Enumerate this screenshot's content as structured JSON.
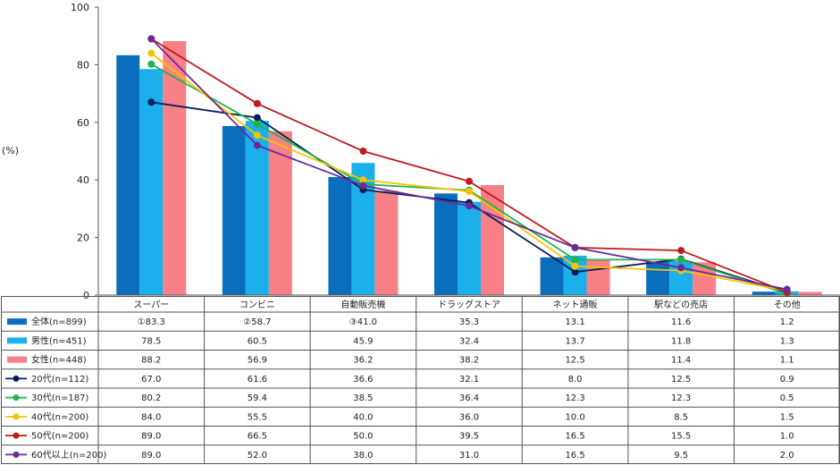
{
  "chart_data": {
    "type": "bar",
    "unit_label": "(%)",
    "ylim": [
      0,
      100
    ],
    "yticks": [
      0,
      20,
      40,
      60,
      80,
      100
    ],
    "categories": [
      "スーパー",
      "コンビニ",
      "自動販売機",
      "ドラッグストア",
      "ネット通販",
      "駅などの売店",
      "その他"
    ],
    "series": [
      {
        "name": "全体(n=899)",
        "kind": "bar",
        "color": "#0A6EBD",
        "values": [
          83.3,
          58.7,
          41.0,
          35.3,
          13.1,
          11.6,
          1.2
        ],
        "labels": [
          "①83.3",
          "②58.7",
          "③41.0",
          "35.3",
          "13.1",
          "11.6",
          "1.2"
        ]
      },
      {
        "name": "男性(n=451)",
        "kind": "bar",
        "color": "#1BB0EB",
        "values": [
          78.5,
          60.5,
          45.9,
          32.4,
          13.7,
          11.8,
          1.3
        ],
        "labels": [
          "78.5",
          "60.5",
          "45.9",
          "32.4",
          "13.7",
          "11.8",
          "1.3"
        ]
      },
      {
        "name": "女性(n=448)",
        "kind": "bar",
        "color": "#F88087",
        "values": [
          88.2,
          56.9,
          36.2,
          38.2,
          12.5,
          11.4,
          1.1
        ],
        "labels": [
          "88.2",
          "56.9",
          "36.2",
          "38.2",
          "12.5",
          "11.4",
          "1.1"
        ]
      },
      {
        "name": "20代(n=112)",
        "kind": "line",
        "color": "#0B1E5C",
        "values": [
          67.0,
          61.6,
          36.6,
          32.1,
          8.0,
          12.5,
          0.9
        ],
        "labels": [
          "67.0",
          "61.6",
          "36.6",
          "32.1",
          "8.0",
          "12.5",
          "0.9"
        ]
      },
      {
        "name": "30代(n=187)",
        "kind": "line",
        "color": "#22B24C",
        "values": [
          80.2,
          59.4,
          38.5,
          36.4,
          12.3,
          12.3,
          0.5
        ],
        "labels": [
          "80.2",
          "59.4",
          "38.5",
          "36.4",
          "12.3",
          "12.3",
          "0.5"
        ]
      },
      {
        "name": "40代(n=200)",
        "kind": "line",
        "color": "#F5C400",
        "values": [
          84.0,
          55.5,
          40.0,
          36.0,
          10.0,
          8.5,
          1.5
        ],
        "labels": [
          "84.0",
          "55.5",
          "40.0",
          "36.0",
          "10.0",
          "8.5",
          "1.5"
        ]
      },
      {
        "name": "50代(n=200)",
        "kind": "line",
        "color": "#C01A1A",
        "values": [
          89.0,
          66.5,
          50.0,
          39.5,
          16.5,
          15.5,
          1.0
        ],
        "labels": [
          "89.0",
          "66.5",
          "50.0",
          "39.5",
          "16.5",
          "15.5",
          "1.0"
        ]
      },
      {
        "name": "60代以上(n=200)",
        "kind": "line",
        "color": "#6A2A9A",
        "values": [
          89.0,
          52.0,
          38.0,
          31.0,
          16.5,
          9.5,
          2.0
        ],
        "labels": [
          "89.0",
          "52.0",
          "38.0",
          "31.0",
          "16.5",
          "9.5",
          "2.0"
        ]
      }
    ]
  }
}
